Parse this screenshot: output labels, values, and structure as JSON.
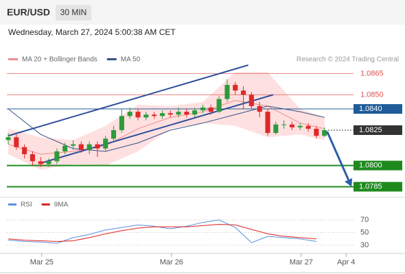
{
  "header": {
    "symbol": "EUR/USD",
    "timeframe": "30 MIN",
    "timestamp": "Wednesday, March 27, 2024 5:00:38 AM CET"
  },
  "chart_data": [
    {
      "type": "candlestick",
      "source": "Research © 2024 Trading Central",
      "up_color": "#2e9a3a",
      "down_color": "#e02828",
      "xlim": [
        0,
        64
      ],
      "xticks": [
        {
          "value": 6.2,
          "label": "Mar 25"
        },
        {
          "value": 30.2,
          "label": "Mar 26"
        },
        {
          "value": 54.2,
          "label": "Mar 27"
        },
        {
          "value": 62.5,
          "label": "Apr 4"
        }
      ],
      "ylim": [
        1.0779,
        1.0871
      ],
      "yticks": [
        1.0865,
        {
          "value": 1.085,
          "label": "1.0850"
        },
        {
          "value": 1.084,
          "label": "1.0840"
        },
        1.0825,
        {
          "value": 1.08,
          "label": "1.0800"
        },
        1.0785
      ],
      "tick_colors": [
        "#e05050",
        "#e05050",
        "#1f5c99",
        "#333333",
        "#1e8a1e",
        "#1e8a1e"
      ],
      "tick_styles": [
        "resistance",
        "resistance",
        "ma",
        "price",
        "support",
        "support"
      ],
      "x": [
        0,
        1.5,
        3,
        4.5,
        6,
        7.5,
        9,
        10.5,
        12,
        13.5,
        15,
        16.5,
        18,
        19.5,
        21,
        22.5,
        24,
        25.5,
        27,
        28.5,
        30,
        31.5,
        33,
        34.5,
        36,
        37.5,
        39,
        40.5,
        42,
        43.5,
        45,
        46.5,
        48,
        49.5,
        51,
        52.5,
        54,
        55.5,
        57,
        58.5
      ],
      "open": [
        1.0818,
        1.082,
        1.0813,
        1.0808,
        1.0803,
        1.0801,
        1.0803,
        1.081,
        1.0814,
        1.0815,
        1.0811,
        1.0815,
        1.0812,
        1.0819,
        1.0825,
        1.0835,
        1.0838,
        1.0834,
        1.0836,
        1.0835,
        1.0837,
        1.0836,
        1.0838,
        1.0836,
        1.0839,
        1.0841,
        1.0838,
        1.0847,
        1.0857,
        1.0853,
        1.085,
        1.0842,
        1.0838,
        1.0823,
        1.0829,
        1.0829,
        1.0827,
        1.0828,
        1.0826,
        1.0821
      ],
      "high": [
        1.0823,
        1.0822,
        1.0815,
        1.081,
        1.0806,
        1.0805,
        1.0812,
        1.0816,
        1.0818,
        1.0817,
        1.0817,
        1.0817,
        1.0821,
        1.0828,
        1.084,
        1.0841,
        1.084,
        1.0838,
        1.0838,
        1.0839,
        1.0839,
        1.0841,
        1.084,
        1.0841,
        1.0843,
        1.0843,
        1.0849,
        1.0861,
        1.0859,
        1.0856,
        1.0852,
        1.0845,
        1.084,
        1.0831,
        1.0832,
        1.0831,
        1.083,
        1.083,
        1.0828,
        1.0827
      ],
      "low": [
        1.0815,
        1.0811,
        1.0805,
        1.08,
        1.0799,
        1.0799,
        1.0801,
        1.0808,
        1.0811,
        1.0809,
        1.0808,
        1.0806,
        1.081,
        1.0817,
        1.0823,
        1.0833,
        1.0832,
        1.0832,
        1.0833,
        1.0833,
        1.0834,
        1.0834,
        1.0834,
        1.0834,
        1.0837,
        1.0836,
        1.0837,
        1.0845,
        1.085,
        1.084,
        1.084,
        1.0834,
        1.0821,
        1.0822,
        1.0826,
        1.0825,
        1.0825,
        1.0824,
        1.0819,
        1.082
      ],
      "close": [
        1.082,
        1.0813,
        1.0808,
        1.0803,
        1.0801,
        1.0803,
        1.081,
        1.0814,
        1.0815,
        1.0811,
        1.0815,
        1.0812,
        1.0819,
        1.0825,
        1.0835,
        1.0838,
        1.0834,
        1.0836,
        1.0835,
        1.0837,
        1.0836,
        1.0838,
        1.0836,
        1.0839,
        1.0841,
        1.0838,
        1.0847,
        1.0857,
        1.0853,
        1.085,
        1.0842,
        1.0838,
        1.0823,
        1.0829,
        1.0829,
        1.0827,
        1.0828,
        1.0826,
        1.0821,
        1.0825
      ],
      "overlays": [
        {
          "name": "MA 20 + Bollinger Bands",
          "color": "#f08c8c",
          "band_color": "#ffd6d6",
          "x": [
            0,
            6,
            12,
            18,
            24,
            30,
            36,
            42,
            48,
            54,
            58.5
          ],
          "values": [
            1.0815,
            1.0808,
            1.081,
            1.0814,
            1.0826,
            1.0834,
            1.0838,
            1.0846,
            1.0842,
            1.083,
            1.0826
          ],
          "upper": [
            1.0826,
            1.082,
            1.0818,
            1.0828,
            1.0843,
            1.0842,
            1.0845,
            1.0866,
            1.0866,
            1.084,
            1.0834
          ],
          "lower": [
            1.0808,
            1.0797,
            1.0801,
            1.08,
            1.081,
            1.0826,
            1.083,
            1.0828,
            1.082,
            1.0822,
            1.0818
          ]
        },
        {
          "name": "MA 50",
          "color": "#2f5286",
          "x": [
            0,
            6,
            12,
            18,
            24,
            30,
            36,
            42,
            48,
            54,
            58.5
          ],
          "values": [
            1.084,
            1.0822,
            1.0812,
            1.081,
            1.0816,
            1.0825,
            1.083,
            1.0836,
            1.0842,
            1.0838,
            1.0834
          ]
        }
      ],
      "trendlines": [
        {
          "x": [
            0,
            44.4
          ],
          "y": [
            1.0821,
            1.0871
          ]
        },
        {
          "x": [
            6.3,
            49
          ],
          "y": [
            1.0802,
            1.085
          ]
        }
      ],
      "trendline_color": "#2f4f9a",
      "arrow": {
        "x": [
          59,
          63.5
        ],
        "y": [
          1.0824,
          1.0785
        ],
        "color": "#2a5ea8"
      }
    },
    {
      "type": "line",
      "xlim": [
        0,
        64
      ],
      "ylim": [
        22,
        82
      ],
      "yticks": [
        30,
        50,
        70
      ],
      "x": [
        0,
        3,
        6,
        9,
        12,
        15,
        18,
        21,
        24,
        27,
        30,
        33,
        36,
        39,
        42,
        45,
        48,
        51,
        54,
        57
      ],
      "series": [
        {
          "name": "RSI",
          "color": "#5a8ee0",
          "values": [
            38,
            36,
            35,
            33,
            42,
            47,
            54,
            58,
            62,
            60,
            56,
            60,
            66,
            70,
            58,
            34,
            44,
            42,
            40,
            36
          ]
        },
        {
          "name": "9MA",
          "color": "#e02020",
          "values": [
            40,
            38,
            37,
            36,
            37,
            42,
            48,
            53,
            57,
            59,
            59,
            59,
            61,
            63,
            62,
            55,
            48,
            44,
            42,
            40
          ]
        }
      ]
    }
  ]
}
